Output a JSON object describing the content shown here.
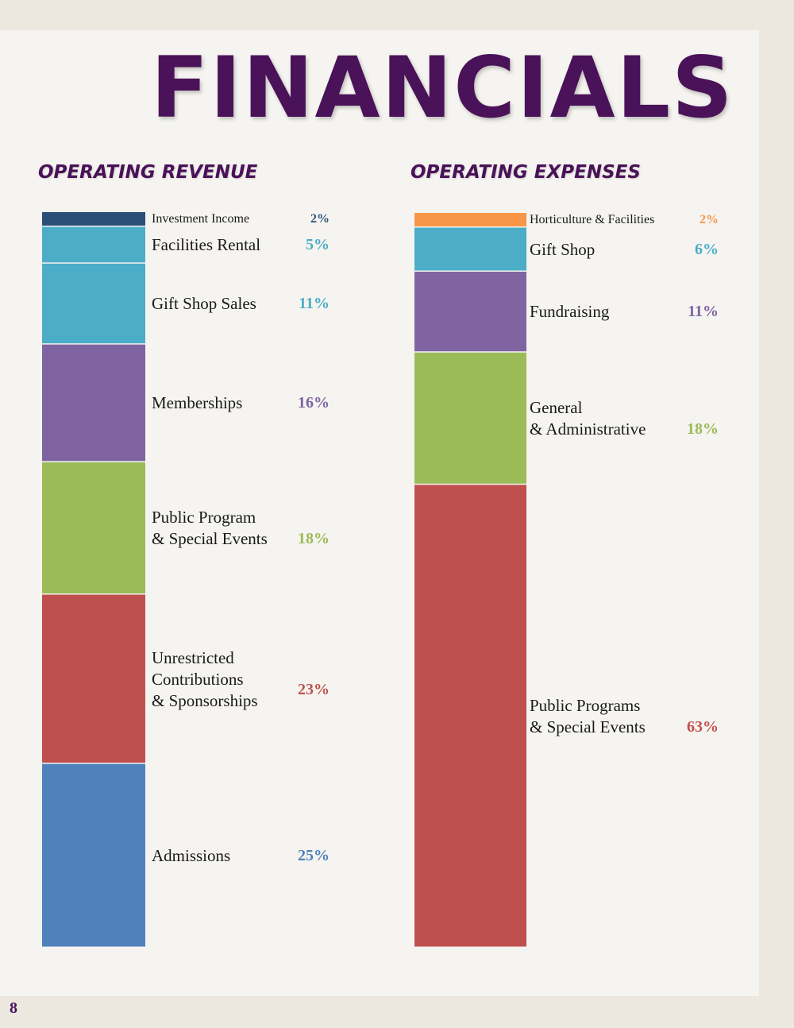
{
  "page": {
    "title": "FINANCIALS",
    "page_number": "8"
  },
  "chart_data": [
    {
      "type": "bar",
      "stacked": true,
      "title": "OPERATING REVENUE",
      "unit": "%",
      "series": [
        {
          "name": "Investment Income",
          "value": 2,
          "label": "2%",
          "color": "#2c4f78"
        },
        {
          "name": "Facilities Rental",
          "value": 5,
          "label": "5%",
          "color": "#4badc8"
        },
        {
          "name": "Gift Shop Sales",
          "value": 11,
          "label": "11%",
          "color": "#4badc8"
        },
        {
          "name": "Memberships",
          "value": 16,
          "label": "16%",
          "color": "#8064a2"
        },
        {
          "name": "Public Program\n& Special Events",
          "value": 18,
          "label": "18%",
          "color": "#9bbb59"
        },
        {
          "name": "Unrestricted\nContributions\n& Sponsorships",
          "value": 23,
          "label": "23%",
          "color": "#c0504d"
        },
        {
          "name": "Admissions",
          "value": 25,
          "label": "25%",
          "color": "#4f81bd"
        }
      ]
    },
    {
      "type": "bar",
      "stacked": true,
      "title": "OPERATING EXPENSES",
      "unit": "%",
      "series": [
        {
          "name": "Horticulture & Facilities",
          "value": 2,
          "label": "2%",
          "color": "#f79646"
        },
        {
          "name": "Gift Shop",
          "value": 6,
          "label": "6%",
          "color": "#4badc8"
        },
        {
          "name": "Fundraising",
          "value": 11,
          "label": "11%",
          "color": "#8064a2"
        },
        {
          "name": "General\n& Administrative",
          "value": 18,
          "label": "18%",
          "color": "#9bbb59"
        },
        {
          "name": "Public Programs\n& Special Events",
          "value": 63,
          "label": "63%",
          "color": "#c0504d"
        }
      ]
    }
  ]
}
